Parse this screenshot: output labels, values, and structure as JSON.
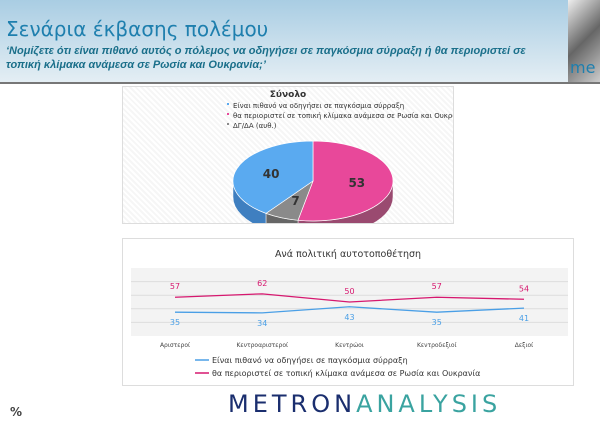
{
  "header": {
    "title": "Σενάρια έκβασης πολέμου",
    "subtitle": "‘Νομίζετε ότι είναι πιθανό αυτός ο πόλεμος να οδηγήσει σε παγκόσμια σύρραξη ή θα περιοριστεί σε τοπική κλίμακα ανάμεσα σε Ρωσία και Ουκρανία;’",
    "photo_text": "me"
  },
  "footer": {
    "unit": "%",
    "logo_part1": "METRON",
    "logo_part2": "ANALYSIS"
  },
  "chart_data": [
    {
      "type": "pie",
      "title": "Σύνολο",
      "labels": [
        "Είναι πιθανό να οδηγήσει σε παγκόσμια σύρραξη",
        "θα περιοριστεί σε τοπική κλίμακα ανάμεσα σε Ρωσία και Ουκρανία",
        "ΔΓ/ΔΑ (αυθ.)"
      ],
      "values": [
        40,
        53,
        7
      ],
      "colors": [
        "#5aaaf0",
        "#e8489a",
        "#8a8a8a"
      ],
      "legend": "top"
    },
    {
      "type": "line",
      "title": "Ανά πολιτική αυτοτοποθέτηση",
      "categories": [
        "Αριστεροί",
        "Κεντροαριστεροί",
        "Κεντρώοι",
        "Κεντροδεξιοί",
        "Δεξιοί"
      ],
      "series": [
        {
          "name": "Είναι πιθανό να οδηγήσει σε παγκόσμια σύρραξη",
          "values": [
            35,
            34,
            43,
            35,
            41
          ],
          "color": "#4a9fe6"
        },
        {
          "name": "θα περιοριστεί σε τοπική κλίμακα ανάμεσα σε Ρωσία και Ουκρανία",
          "values": [
            57,
            62,
            50,
            57,
            54
          ],
          "color": "#d6186f"
        }
      ],
      "ylim": [
        0,
        100
      ],
      "legend": "bottom",
      "grid": true
    }
  ]
}
